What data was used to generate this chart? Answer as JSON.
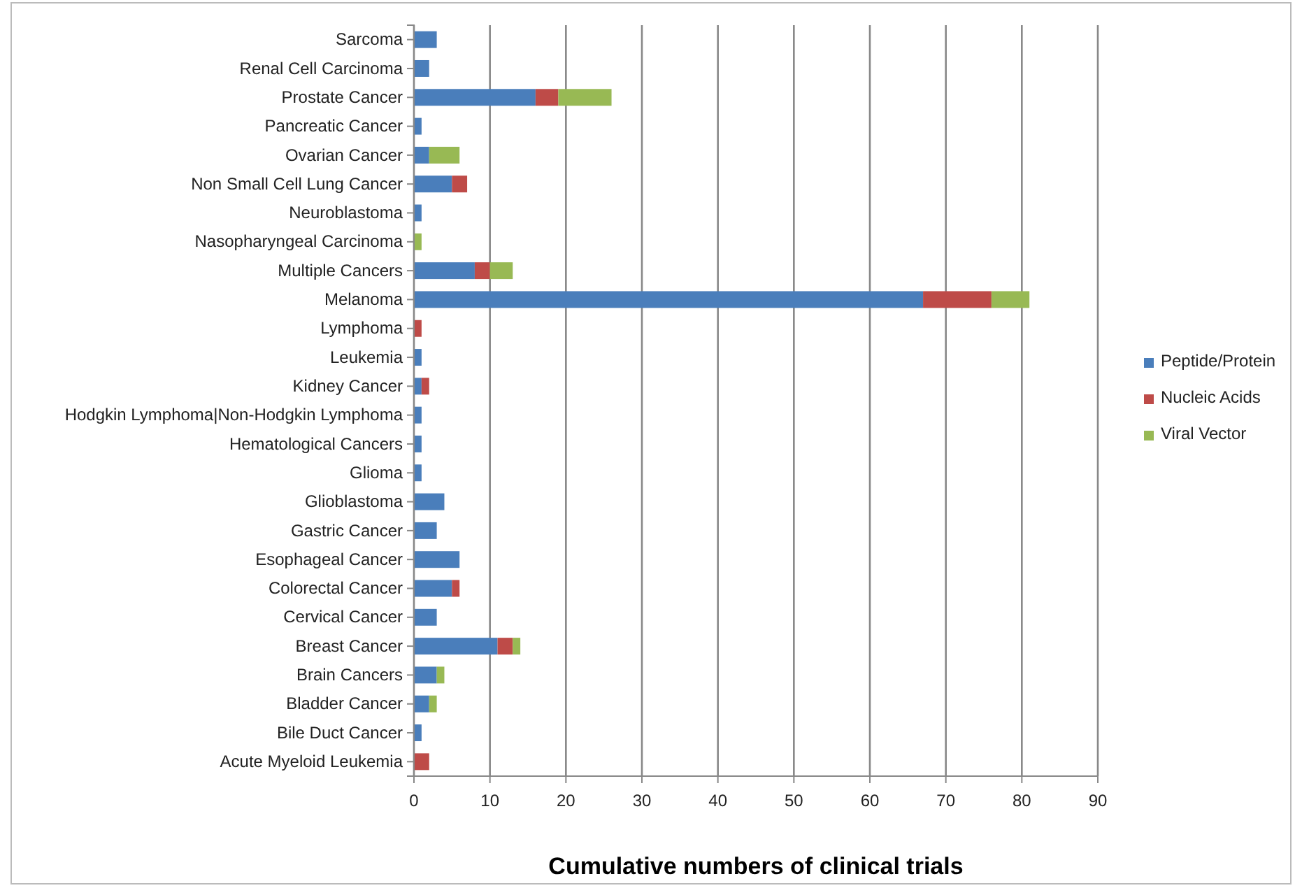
{
  "chart_data": {
    "type": "bar",
    "orientation": "horizontal",
    "stacked": true,
    "xlabel": "Cumulative numbers of clinical trials",
    "categories": [
      "Sarcoma",
      "Renal Cell Carcinoma",
      "Prostate Cancer",
      "Pancreatic Cancer",
      "Ovarian Cancer",
      "Non Small Cell Lung Cancer",
      "Neuroblastoma",
      "Nasopharyngeal Carcinoma",
      "Multiple Cancers",
      "Melanoma",
      "Lymphoma",
      "Leukemia",
      "Kidney Cancer",
      "Hodgkin Lymphoma|Non-Hodgkin Lymphoma",
      "Hematological Cancers",
      "Glioma",
      "Glioblastoma",
      "Gastric Cancer",
      "Esophageal Cancer",
      "Colorectal Cancer",
      "Cervical Cancer",
      "Breast Cancer",
      "Brain Cancers",
      "Bladder Cancer",
      "Bile Duct Cancer",
      "Acute Myeloid Leukemia"
    ],
    "series": [
      {
        "name": "Peptide/Protein",
        "color": "#4a7ebb",
        "values": [
          3,
          2,
          16,
          1,
          2,
          5,
          1,
          0,
          8,
          67,
          0,
          1,
          1,
          1,
          1,
          1,
          4,
          3,
          6,
          5,
          3,
          11,
          3,
          2,
          1,
          0
        ]
      },
      {
        "name": "Nucleic Acids",
        "color": "#be4b48",
        "values": [
          0,
          0,
          3,
          0,
          0,
          2,
          0,
          0,
          2,
          9,
          1,
          0,
          1,
          0,
          0,
          0,
          0,
          0,
          0,
          1,
          0,
          2,
          0,
          0,
          0,
          2
        ]
      },
      {
        "name": "Viral Vector",
        "color": "#98b954",
        "values": [
          0,
          0,
          7,
          0,
          4,
          0,
          0,
          1,
          3,
          5,
          0,
          0,
          0,
          0,
          0,
          0,
          0,
          0,
          0,
          0,
          0,
          1,
          1,
          1,
          0,
          0
        ]
      }
    ],
    "xlim": [
      0,
      90
    ],
    "xticks": [
      0,
      10,
      20,
      30,
      40,
      50,
      60,
      70,
      80,
      90
    ],
    "grid": "x",
    "legend": "right"
  }
}
